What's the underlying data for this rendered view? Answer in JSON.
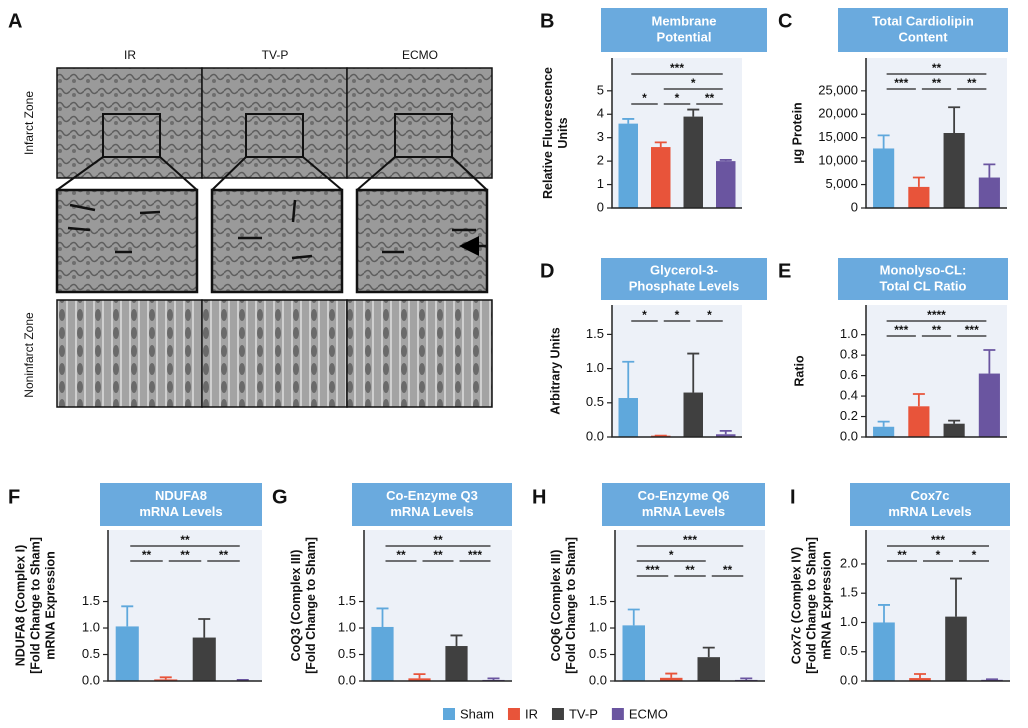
{
  "panel_a": {
    "panel": "A",
    "columns": [
      "IR",
      "TV-P",
      "ECMO"
    ],
    "rows": [
      "Infarct Zone",
      "Noninfarct Zone"
    ]
  },
  "groups": [
    {
      "name": "Sham",
      "color": "#5fa8dc"
    },
    {
      "name": "IR",
      "color": "#e8543a"
    },
    {
      "name": "TV-P",
      "color": "#404040"
    },
    {
      "name": "ECMO",
      "color": "#6a55a0"
    }
  ],
  "chart_data": [
    {
      "type": "bar",
      "panel": "B",
      "title": [
        "Membrane",
        "Potential"
      ],
      "y_label": [
        "Relative Fluorescence",
        "Units"
      ],
      "values": [
        3.6,
        2.6,
        3.9,
        2.0
      ],
      "errors": [
        0.2,
        0.2,
        0.3,
        0.05
      ],
      "ylim": [
        0,
        6.4
      ],
      "yticks": [
        0,
        1,
        2,
        3,
        4,
        5
      ],
      "annotations": [
        {
          "label": "***",
          "between": [
            0,
            3
          ]
        },
        {
          "label": "*",
          "between": [
            1,
            3
          ]
        },
        {
          "label": "*",
          "between": [
            0,
            1
          ]
        },
        {
          "label": "*",
          "between": [
            1,
            2
          ]
        },
        {
          "label": "**",
          "between": [
            2,
            3
          ]
        }
      ]
    },
    {
      "type": "bar",
      "panel": "C",
      "title": [
        "Total Cardiolipin",
        "Content"
      ],
      "y_label": [
        "µg Protein"
      ],
      "values": [
        12700,
        4500,
        16000,
        6500
      ],
      "errors": [
        2800,
        2000,
        5500,
        2800
      ],
      "ylim": [
        0,
        32000
      ],
      "yticks": [
        0,
        {
          "value": 5000,
          "label": "5,000"
        },
        {
          "value": 10000,
          "label": "10,000"
        },
        {
          "value": 15000,
          "label": "15,000"
        },
        {
          "value": 20000,
          "label": "20,000"
        },
        {
          "value": 25000,
          "label": "25,000"
        }
      ],
      "annotations": [
        {
          "label": "**",
          "between": [
            0,
            3
          ]
        },
        {
          "label": "***",
          "between": [
            0,
            1
          ]
        },
        {
          "label": "**",
          "between": [
            1,
            2
          ]
        },
        {
          "label": "**",
          "between": [
            2,
            3
          ]
        }
      ]
    },
    {
      "type": "bar",
      "panel": "D",
      "title": [
        "Glycerol-3-",
        "Phosphate Levels"
      ],
      "y_label": [
        "Arbitrary Units"
      ],
      "values": [
        0.57,
        0.02,
        0.65,
        0.04
      ],
      "errors": [
        0.53,
        0,
        0.57,
        0.05
      ],
      "ylim": [
        0,
        1.93
      ],
      "yticks": [
        {
          "value": 0,
          "label": "0.0"
        },
        0.5,
        {
          "value": 1,
          "label": "1.0"
        },
        1.5
      ],
      "annotations": [
        {
          "label": "*",
          "between": [
            0,
            1
          ]
        },
        {
          "label": "*",
          "between": [
            1,
            2
          ]
        },
        {
          "label": "*",
          "between": [
            2,
            3
          ]
        }
      ]
    },
    {
      "type": "bar",
      "panel": "E",
      "title": [
        "Monolyso-CL:",
        "Total CL Ratio"
      ],
      "y_label": [
        "Ratio"
      ],
      "values": [
        0.1,
        0.3,
        0.13,
        0.62
      ],
      "errors": [
        0.05,
        0.12,
        0.03,
        0.23
      ],
      "ylim": [
        0,
        1.29
      ],
      "yticks": [
        {
          "value": 0,
          "label": "0.0"
        },
        0.2,
        0.4,
        0.6,
        0.8,
        {
          "value": 1,
          "label": "1.0"
        }
      ],
      "annotations": [
        {
          "label": "****",
          "between": [
            0,
            3
          ]
        },
        {
          "label": "***",
          "between": [
            0,
            1
          ]
        },
        {
          "label": "**",
          "between": [
            1,
            2
          ]
        },
        {
          "label": "***",
          "between": [
            2,
            3
          ]
        }
      ]
    },
    {
      "type": "bar",
      "panel": "F",
      "title": [
        "NDUFA8",
        "mRNA Levels"
      ],
      "y_label": [
        "NDUFA8 (Complex I)",
        "[Fold Change to Sham]",
        "mRNA Expression"
      ],
      "values": [
        1.03,
        0.03,
        0.82,
        0.01
      ],
      "errors": [
        0.38,
        0.04,
        0.35,
        0.01
      ],
      "ylim": [
        0,
        2.85
      ],
      "yticks": [
        {
          "value": 0,
          "label": "0.0"
        },
        0.5,
        {
          "value": 1,
          "label": "1.0"
        },
        1.5
      ],
      "annotations": [
        {
          "label": "**",
          "between": [
            0,
            3
          ]
        },
        {
          "label": "**",
          "between": [
            0,
            1
          ]
        },
        {
          "label": "**",
          "between": [
            1,
            2
          ]
        },
        {
          "label": "**",
          "between": [
            2,
            3
          ]
        }
      ]
    },
    {
      "type": "bar",
      "panel": "G",
      "title": [
        "Co-Enzyme Q3",
        "mRNA Levels"
      ],
      "y_label": [
        "CoQ3 (Complex III)",
        "[Fold Change to Sham]"
      ],
      "values": [
        1.02,
        0.05,
        0.66,
        0.02
      ],
      "errors": [
        0.35,
        0.08,
        0.2,
        0.03
      ],
      "ylim": [
        0,
        2.85
      ],
      "yticks": [
        {
          "value": 0,
          "label": "0.0"
        },
        0.5,
        {
          "value": 1,
          "label": "1.0"
        },
        1.5
      ],
      "annotations": [
        {
          "label": "**",
          "between": [
            0,
            3
          ]
        },
        {
          "label": "**",
          "between": [
            0,
            1
          ]
        },
        {
          "label": "**",
          "between": [
            1,
            2
          ]
        },
        {
          "label": "***",
          "between": [
            2,
            3
          ]
        }
      ]
    },
    {
      "type": "bar",
      "panel": "H",
      "title": [
        "Co-Enzyme Q6",
        "mRNA Levels"
      ],
      "y_label": [
        "CoQ6 (Complex III)",
        "[Fold Change to Sham]"
      ],
      "values": [
        1.05,
        0.06,
        0.45,
        0.02
      ],
      "errors": [
        0.3,
        0.08,
        0.18,
        0.03
      ],
      "ylim": [
        0,
        2.85
      ],
      "yticks": [
        {
          "value": 0,
          "label": "0.0"
        },
        0.5,
        {
          "value": 1,
          "label": "1.0"
        },
        1.5
      ],
      "annotations": [
        {
          "label": "***",
          "between": [
            0,
            3
          ]
        },
        {
          "label": "*",
          "between": [
            0,
            2
          ]
        },
        {
          "label": "***",
          "between": [
            0,
            1
          ]
        },
        {
          "label": "**",
          "between": [
            1,
            2
          ]
        },
        {
          "label": "**",
          "between": [
            2,
            3
          ]
        }
      ]
    },
    {
      "type": "bar",
      "panel": "I",
      "title": [
        "Cox7c",
        "mRNA Levels"
      ],
      "y_label": [
        "Cox7c (Complex IV)",
        "[Fold Change to Sham]",
        "mRNA Expression"
      ],
      "values": [
        1.0,
        0.05,
        1.1,
        0.02
      ],
      "errors": [
        0.3,
        0.07,
        0.65,
        0.01
      ],
      "ylim": [
        0,
        2.58
      ],
      "yticks": [
        {
          "value": 0,
          "label": "0.0"
        },
        0.5,
        {
          "value": 1,
          "label": "1.0"
        },
        1.5,
        {
          "value": 2,
          "label": "2.0"
        }
      ],
      "annotations": [
        {
          "label": "***",
          "between": [
            0,
            3
          ]
        },
        {
          "label": "**",
          "between": [
            0,
            1
          ]
        },
        {
          "label": "*",
          "between": [
            1,
            2
          ]
        },
        {
          "label": "*",
          "between": [
            2,
            3
          ]
        }
      ]
    }
  ]
}
